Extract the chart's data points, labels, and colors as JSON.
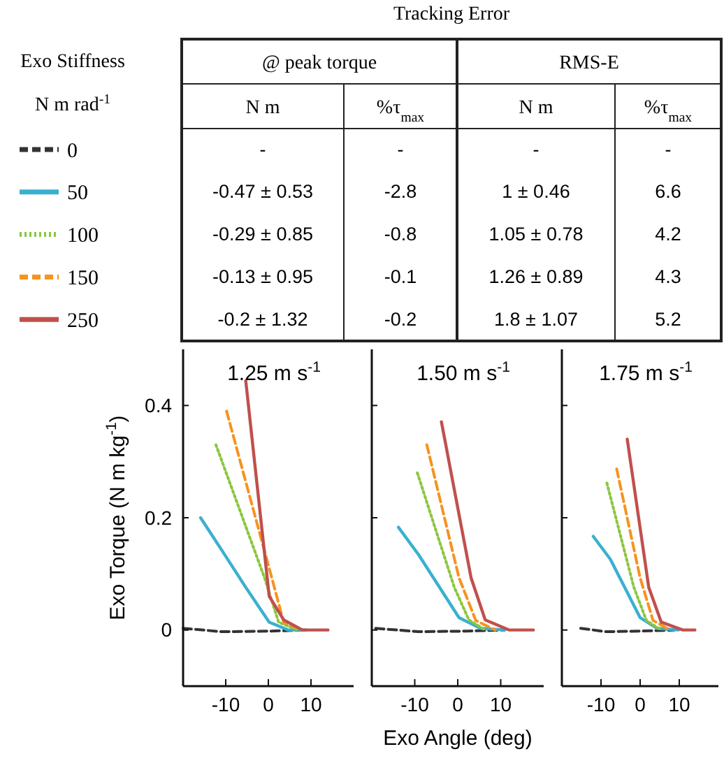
{
  "chart_data": [
    {
      "type": "other",
      "title": "Tracking Error",
      "annotations": [
        "@ peak torque",
        "RMS-E",
        "N m",
        "%τ$_{max}$",
        "N m",
        "%τ$_{max}$",
        "-",
        "-",
        "-",
        "-",
        "-0.47 ± 0.53",
        "-2.8",
        "1 ± 0.46",
        "6.6",
        "-0.29 ± 0.85",
        "-0.8",
        "1.05 ± 0.78",
        "4.2",
        "-0.13 ± 0.95",
        "-0.1",
        "1.26 ± 0.89",
        "4.3",
        "-0.2 ± 1.32",
        "-0.2",
        "1.8 ± 1.07",
        "5.2"
      ]
    },
    {
      "type": "line",
      "title": "1.25 m s$^{-1}$",
      "ylabel": "Exo Torque (N m kg$^{-1}$)",
      "legend_title": "Exo Stiffness\nN m rad$^{-1}$",
      "legend": "left",
      "xlim": [
        -20,
        20
      ],
      "xticks": [
        -10,
        0,
        10
      ],
      "ylim": [
        -0.1,
        0.5
      ],
      "yticks": [
        0,
        0.2,
        0.4
      ],
      "series": [
        {
          "name": "0",
          "color": "#333333",
          "line_style": "dashed",
          "x": [
            -20,
            -10.9,
            0.2,
            9
          ],
          "values": [
            0.003,
            -0.003,
            -0.002,
            0
          ]
        },
        {
          "name": "50",
          "color": "#3ab0d0",
          "line_style": "solid",
          "x": [
            -15.9,
            -10.9,
            -5.3,
            0.2,
            4.7,
            9
          ],
          "values": [
            0.2,
            0.142,
            0.076,
            0.014,
            0,
            0
          ]
        },
        {
          "name": "100",
          "color": "#8cc63f",
          "line_style": "dotted",
          "x": [
            -12.3,
            -0.9,
            2.4,
            6.9
          ],
          "values": [
            0.33,
            0.093,
            0.014,
            0
          ]
        },
        {
          "name": "150",
          "color": "#f7931e",
          "line_style": "dashed",
          "x": [
            -9.8,
            0.2,
            3.6,
            8
          ],
          "values": [
            0.39,
            0.11,
            0.014,
            0
          ]
        },
        {
          "name": "250",
          "color": "#c0504d",
          "line_style": "solid",
          "x": [
            -5.3,
            0.2,
            3.6,
            8,
            14
          ],
          "values": [
            0.444,
            0.06,
            0.018,
            0,
            0
          ]
        }
      ]
    },
    {
      "type": "line",
      "title": "1.50 m s$^{-1}$",
      "xlabel": "Exo Angle (deg)",
      "tick_labels": "x",
      "xlim": [
        -20,
        20
      ],
      "xticks": [
        -10,
        0,
        10
      ],
      "ylim": [
        -0.1,
        0.5
      ],
      "yticks": [
        0,
        0.2,
        0.4
      ],
      "series": [
        {
          "color": "#333333",
          "line_style": "dashed",
          "x": [
            -19.1,
            -9.1,
            2,
            10.9
          ],
          "values": [
            0.003,
            -0.003,
            -0.002,
            0
          ]
        },
        {
          "color": "#3ab0d0",
          "line_style": "solid",
          "x": [
            -13.8,
            -9.1,
            0.3,
            5.3,
            10.9
          ],
          "values": [
            0.183,
            0.134,
            0.022,
            0.003,
            0
          ]
        },
        {
          "color": "#8cc63f",
          "line_style": "dotted",
          "x": [
            -9.4,
            -0.8,
            2.6,
            6.4
          ],
          "values": [
            0.28,
            0.076,
            0.018,
            0
          ]
        },
        {
          "color": "#f7931e",
          "line_style": "dashed",
          "x": [
            -7.2,
            0.3,
            4.2,
            8.7
          ],
          "values": [
            0.33,
            0.093,
            0.017,
            0
          ]
        },
        {
          "color": "#c0504d",
          "line_style": "solid",
          "x": [
            -3.8,
            3.1,
            6.4,
            12,
            17.6
          ],
          "values": [
            0.371,
            0.093,
            0.018,
            0,
            0
          ]
        }
      ]
    },
    {
      "type": "line",
      "title": "1.75 m s$^{-1}$",
      "tick_labels": "x",
      "xlim": [
        -20,
        20
      ],
      "xticks": [
        -10,
        0,
        10
      ],
      "ylim": [
        -0.1,
        0.5
      ],
      "yticks": [
        0,
        0.2,
        0.4
      ],
      "series": [
        {
          "color": "#333333",
          "line_style": "dashed",
          "x": [
            -15.2,
            -8.7,
            0,
            8.7
          ],
          "values": [
            0.003,
            -0.003,
            -0.002,
            0
          ]
        },
        {
          "color": "#3ab0d0",
          "line_style": "solid",
          "x": [
            -12,
            -7.6,
            0,
            4.3,
            9.8
          ],
          "values": [
            0.167,
            0.126,
            0.022,
            0.003,
            0
          ]
        },
        {
          "color": "#8cc63f",
          "line_style": "dotted",
          "x": [
            -8.5,
            -1.6,
            1.6,
            5.4
          ],
          "values": [
            0.262,
            0.076,
            0.017,
            0
          ]
        },
        {
          "color": "#f7931e",
          "line_style": "dashed",
          "x": [
            -6,
            0,
            3.3,
            7.6
          ],
          "values": [
            0.287,
            0.093,
            0.017,
            0
          ]
        },
        {
          "color": "#c0504d",
          "line_style": "solid",
          "x": [
            -3.3,
            2.2,
            5.4,
            10.9,
            14
          ],
          "values": [
            0.34,
            0.076,
            0.014,
            0,
            0
          ]
        }
      ]
    }
  ]
}
